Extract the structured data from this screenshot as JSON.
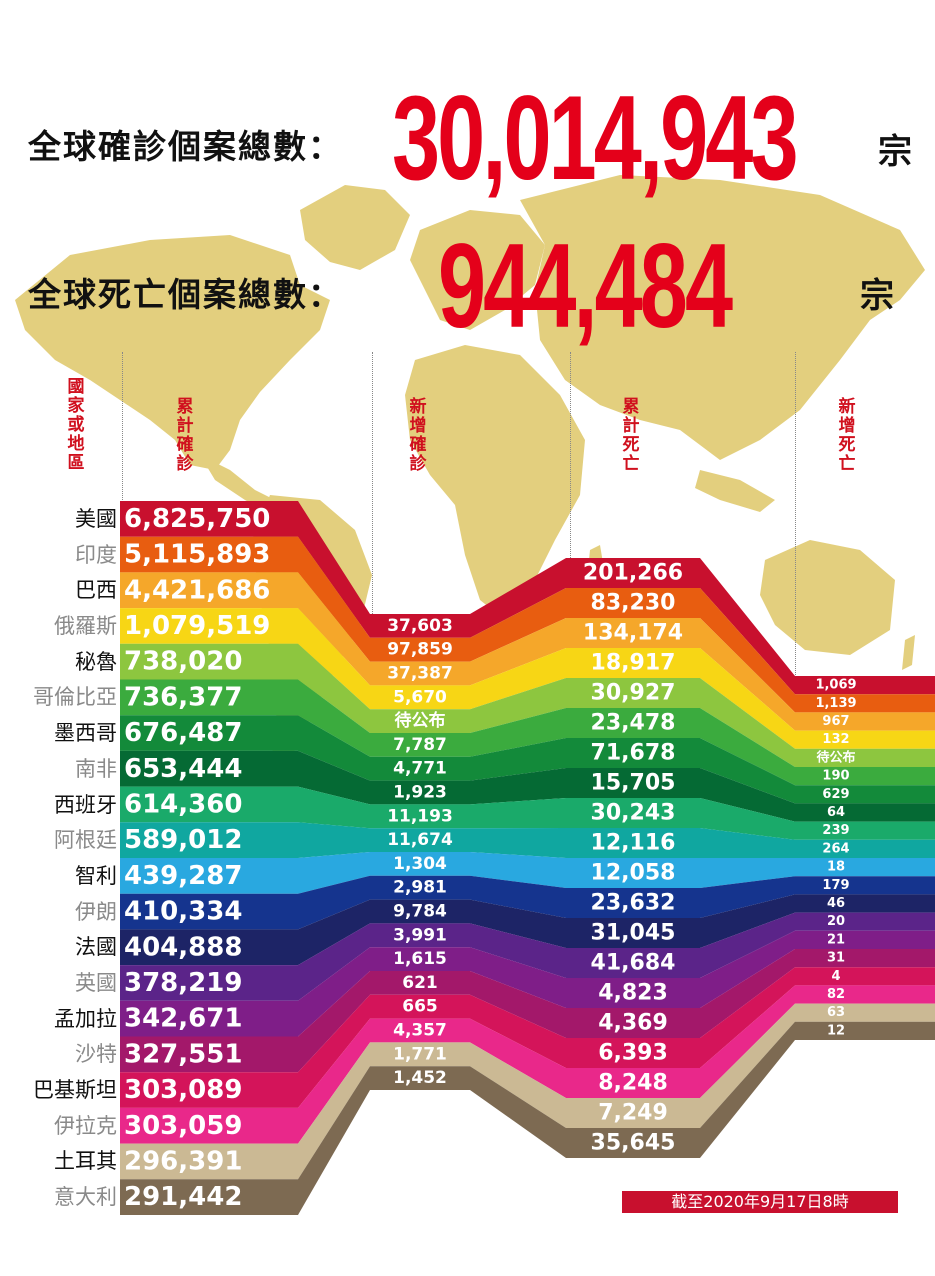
{
  "headline": {
    "cases_label": "全球確診個案總數：",
    "cases_value": "30,014,943",
    "deaths_label": "全球死亡個案總數：",
    "deaths_value": "944,484",
    "unit": "宗"
  },
  "colors": {
    "headline_red": "#e4001a",
    "header_red": "#d0101e",
    "map": "#e3cf7e"
  },
  "chart_data": {
    "type": "table",
    "columns": [
      "國家或地區",
      "累計確診",
      "新增確診",
      "累計死亡",
      "新增死亡"
    ],
    "rows": [
      {
        "country": "美國",
        "total_cases": "6,825,750",
        "new_cases": "37,603",
        "total_deaths": "201,266",
        "new_deaths": "1,069",
        "color": "#c8102e"
      },
      {
        "country": "印度",
        "total_cases": "5,115,893",
        "new_cases": "97,859",
        "total_deaths": "83,230",
        "new_deaths": "1,139",
        "color": "#e85d10"
      },
      {
        "country": "巴西",
        "total_cases": "4,421,686",
        "new_cases": "37,387",
        "total_deaths": "134,174",
        "new_deaths": "967",
        "color": "#f5a72a"
      },
      {
        "country": "俄羅斯",
        "total_cases": "1,079,519",
        "new_cases": "5,670",
        "total_deaths": "18,917",
        "new_deaths": "132",
        "color": "#f7d615"
      },
      {
        "country": "秘魯",
        "total_cases": "738,020",
        "new_cases": "待公布",
        "total_deaths": "30,927",
        "new_deaths": "待公布",
        "color": "#8dc63f"
      },
      {
        "country": "哥倫比亞",
        "total_cases": "736,377",
        "new_cases": "7,787",
        "total_deaths": "23,478",
        "new_deaths": "190",
        "color": "#3bab3e"
      },
      {
        "country": "墨西哥",
        "total_cases": "676,487",
        "new_cases": "4,771",
        "total_deaths": "71,678",
        "new_deaths": "629",
        "color": "#138a3a"
      },
      {
        "country": "南非",
        "total_cases": "653,444",
        "new_cases": "1,923",
        "total_deaths": "15,705",
        "new_deaths": "64",
        "color": "#056a34"
      },
      {
        "country": "西班牙",
        "total_cases": "614,360",
        "new_cases": "11,193",
        "total_deaths": "30,243",
        "new_deaths": "239",
        "color": "#1aaa6a"
      },
      {
        "country": "阿根廷",
        "total_cases": "589,012",
        "new_cases": "11,674",
        "total_deaths": "12,116",
        "new_deaths": "264",
        "color": "#10a7a0"
      },
      {
        "country": "智利",
        "total_cases": "439,287",
        "new_cases": "1,304",
        "total_deaths": "12,058",
        "new_deaths": "18",
        "color": "#29a8e0"
      },
      {
        "country": "伊朗",
        "total_cases": "410,334",
        "new_cases": "2,981",
        "total_deaths": "23,632",
        "new_deaths": "179",
        "color": "#15348e"
      },
      {
        "country": "法國",
        "total_cases": "404,888",
        "new_cases": "9,784",
        "total_deaths": "31,045",
        "new_deaths": "46",
        "color": "#1d2466"
      },
      {
        "country": "英國",
        "total_cases": "378,219",
        "new_cases": "3,991",
        "total_deaths": "41,684",
        "new_deaths": "20",
        "color": "#5b2489"
      },
      {
        "country": "孟加拉",
        "total_cases": "342,671",
        "new_cases": "1,615",
        "total_deaths": "4,823",
        "new_deaths": "21",
        "color": "#7f1e88"
      },
      {
        "country": "沙特",
        "total_cases": "327,551",
        "new_cases": "621",
        "total_deaths": "4,369",
        "new_deaths": "31",
        "color": "#a3186a"
      },
      {
        "country": "巴基斯坦",
        "total_cases": "303,089",
        "new_cases": "665",
        "total_deaths": "6,393",
        "new_deaths": "4",
        "color": "#d4145a"
      },
      {
        "country": "伊拉克",
        "total_cases": "303,059",
        "new_cases": "4,357",
        "total_deaths": "8,248",
        "new_deaths": "82",
        "color": "#e9288a"
      },
      {
        "country": "土耳其",
        "total_cases": "296,391",
        "new_cases": "1,771",
        "total_deaths": "7,249",
        "new_deaths": "63",
        "color": "#cbb994"
      },
      {
        "country": "意大利",
        "total_cases": "291,442",
        "new_cases": "1,452",
        "total_deaths": "35,645",
        "new_deaths": "12",
        "color": "#7d6a52"
      }
    ]
  },
  "footnote": "截至2020年9月17日8時"
}
